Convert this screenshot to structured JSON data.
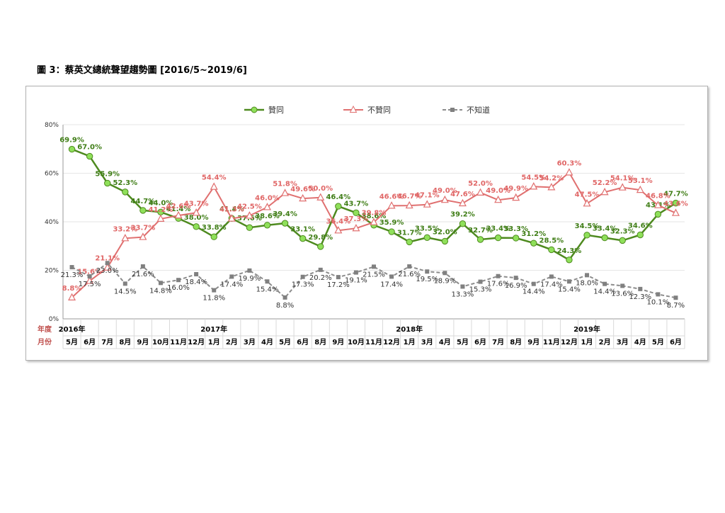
{
  "figure": {
    "title": "圖 3：蔡英文總統聲望趨勢圖  [2016/5~2019/6]"
  },
  "chart_data": {
    "type": "line",
    "categories": [
      "5月",
      "6月",
      "7月",
      "8月",
      "9月",
      "10月",
      "11月",
      "12月",
      "1月",
      "2月",
      "3月",
      "4月",
      "5月",
      "6月",
      "8月",
      "9月",
      "10月",
      "11月",
      "12月",
      "1月",
      "3月",
      "4月",
      "5月",
      "6月",
      "7月",
      "8月",
      "9月",
      "11月",
      "12月",
      "1月",
      "2月",
      "3月",
      "4月",
      "5月",
      "6月"
    ],
    "x_axis_rows": {
      "year_label": "年度",
      "month_label": "月份",
      "years": [
        {
          "label": "2016年",
          "index": 0
        },
        {
          "label": "2017年",
          "index": 8
        },
        {
          "label": "2018年",
          "index": 19
        },
        {
          "label": "2019年",
          "index": 29
        }
      ]
    },
    "ylim": [
      0,
      80
    ],
    "yticks": [
      "0%",
      "20%",
      "40%",
      "60%",
      "80%"
    ],
    "series": [
      {
        "name": "贊同",
        "color": "#4e8a1f",
        "marker": "circle",
        "dash": false,
        "values": [
          69.9,
          67.0,
          55.9,
          52.3,
          44.7,
          44.0,
          41.4,
          38.0,
          33.8,
          41.4,
          37.6,
          38.6,
          39.4,
          33.1,
          29.8,
          46.4,
          43.7,
          38.6,
          35.9,
          31.7,
          33.5,
          32.0,
          39.2,
          32.7,
          33.4,
          33.3,
          31.2,
          28.5,
          24.3,
          34.5,
          33.4,
          32.3,
          34.6,
          43.1,
          47.7
        ],
        "labels": [
          "69.9%",
          "67.0%",
          "55.9%",
          "52.3%",
          "44.7%",
          "44.0%",
          "41.4%",
          "38.0%",
          "33.8%",
          "41.4%",
          "37.6%",
          "38.6%",
          "39.4%",
          "33.1%",
          "29.8%",
          "46.4%",
          "43.7%",
          "38.6%",
          "35.9%",
          "31.7%",
          "33.5%",
          "32.0%",
          "39.2%",
          "32.7%",
          "33.4%",
          "33.3%",
          "31.2%",
          "28.5%",
          "24.3%",
          "34.5%",
          "33.4%",
          "32.3%",
          "34.6%",
          "43.1%",
          "47.7%"
        ]
      },
      {
        "name": "不贊同",
        "color": "#e07070",
        "marker": "triangle",
        "dash": false,
        "values": [
          8.8,
          15.6,
          21.1,
          33.2,
          33.7,
          41.2,
          42.6,
          43.7,
          54.4,
          41.3,
          42.5,
          46.0,
          51.8,
          49.6,
          50.0,
          36.4,
          37.3,
          39.8,
          46.6,
          46.7,
          47.1,
          49.0,
          47.6,
          52.0,
          49.0,
          49.9,
          54.5,
          54.2,
          60.3,
          47.5,
          52.2,
          54.1,
          53.1,
          46.8,
          43.6
        ],
        "labels": [
          "8.8%",
          "15.6%",
          "21.1%",
          "33.2%",
          "33.7%",
          "41.2%",
          "42.6%",
          "43.7%",
          "54.4%",
          "41.3%",
          "42.5%",
          "46.0%",
          "51.8%",
          "49.6%",
          "50.0%",
          "36.4%",
          "37.3%",
          "39.8%",
          "46.6%",
          "46.7%",
          "47.1%",
          "49.0%",
          "47.6%",
          "52.0%",
          "49.0%",
          "49.9%",
          "54.5%",
          "54.2%",
          "60.3%",
          "47.5%",
          "52.2%",
          "54.1%",
          "53.1%",
          "46.8%",
          "43.6%"
        ]
      },
      {
        "name": "不知道",
        "color": "#8c8c8c",
        "marker": "square",
        "dash": true,
        "values": [
          21.3,
          17.5,
          23.0,
          14.5,
          21.6,
          14.8,
          16.0,
          18.4,
          11.8,
          17.4,
          19.9,
          15.4,
          8.8,
          17.3,
          20.2,
          17.2,
          19.1,
          21.5,
          17.4,
          21.6,
          19.5,
          18.9,
          13.3,
          15.3,
          17.6,
          16.9,
          14.4,
          17.4,
          15.4,
          18.0,
          14.4,
          13.6,
          12.3,
          10.1,
          8.7
        ],
        "labels": [
          "21.3%",
          "17.5%",
          "23.0%",
          "14.5%",
          "21.6%",
          "14.8%",
          "16.0%",
          "18.4%",
          "11.8%",
          "17.4%",
          "19.9%",
          "15.4%",
          "8.8%",
          "17.3%",
          "20.2%",
          "17.2%",
          "19.1%",
          "21.5%",
          "17.4%",
          "21.6%",
          "19.5%",
          "18.9%",
          "13.3%",
          "15.3%",
          "17.6%",
          "16.9%",
          "14.4%",
          "17.4%",
          "15.4%",
          "18.0%",
          "14.4%",
          "13.6%",
          "12.3%",
          "10.1%",
          "8.7%"
        ]
      }
    ],
    "legend": {
      "placement": "top-center"
    },
    "grid": true
  }
}
